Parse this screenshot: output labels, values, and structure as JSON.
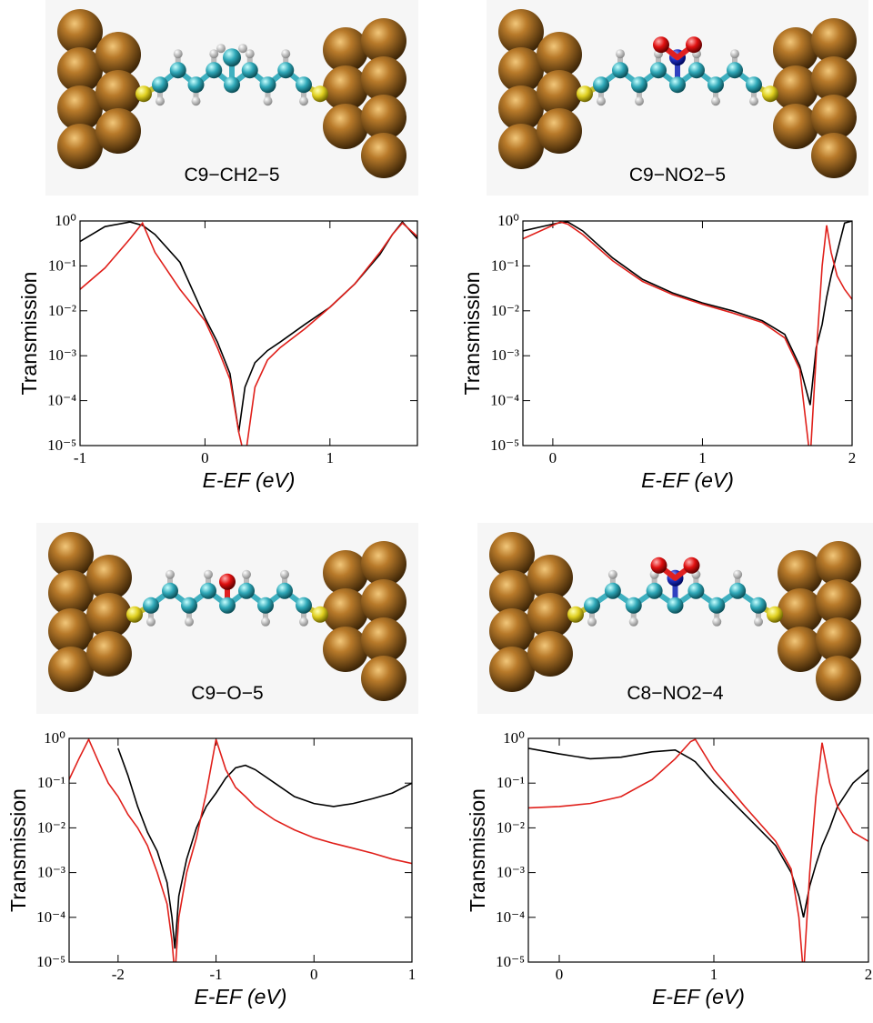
{
  "chart_data": [
    {
      "type": "line",
      "title": "C9−CH2−5",
      "xlabel": "E-EF  (eV)",
      "ylabel": "Transmission",
      "log_y": true,
      "xlim": [
        -1,
        1.7
      ],
      "xticks": [
        -1,
        0,
        1
      ],
      "ylim": [
        1e-05,
        1
      ],
      "yticks": [
        {
          "value": 1e-05,
          "label": "10⁻⁵"
        },
        {
          "value": 0.0001,
          "label": "10⁻⁴"
        },
        {
          "value": 0.001,
          "label": "10⁻³"
        },
        {
          "value": 0.01,
          "label": "10⁻²"
        },
        {
          "value": 0.1,
          "label": "10⁻¹"
        },
        {
          "value": 1,
          "label": "10⁰"
        }
      ],
      "x": [
        -1,
        -0.8,
        -0.6,
        -0.5,
        -0.4,
        -0.2,
        0,
        0.1,
        0.2,
        0.27,
        0.32,
        0.4,
        0.5,
        0.6,
        0.8,
        1.0,
        1.2,
        1.4,
        1.5,
        1.58,
        1.7
      ],
      "series": [
        {
          "color": "#000000",
          "values": [
            0.35,
            0.75,
            0.95,
            0.8,
            0.5,
            0.12,
            0.007,
            0.002,
            0.0004,
            2e-05,
            0.0002,
            0.0007,
            0.0013,
            0.002,
            0.005,
            0.012,
            0.04,
            0.18,
            0.5,
            0.95,
            0.4
          ]
        },
        {
          "color": "#e0201b",
          "values": [
            0.03,
            0.09,
            0.4,
            0.9,
            0.2,
            0.03,
            0.006,
            0.0015,
            0.0003,
            2e-05,
            5e-06,
            0.0002,
            0.0008,
            0.0015,
            0.004,
            0.012,
            0.04,
            0.2,
            0.5,
            0.9,
            0.45
          ]
        }
      ]
    },
    {
      "type": "line",
      "title": "C9−NO2−5",
      "xlabel": "E-EF  (eV)",
      "ylabel": "Transmission",
      "log_y": true,
      "xlim": [
        -0.2,
        2
      ],
      "xticks": [
        0,
        1,
        2
      ],
      "ylim": [
        1e-05,
        1
      ],
      "yticks": [
        {
          "value": 1e-05,
          "label": "10⁻⁵"
        },
        {
          "value": 0.0001,
          "label": "10⁻⁴"
        },
        {
          "value": 0.001,
          "label": "10⁻³"
        },
        {
          "value": 0.01,
          "label": "10⁻²"
        },
        {
          "value": 0.1,
          "label": "10⁻¹"
        },
        {
          "value": 1,
          "label": "10⁰"
        }
      ],
      "x": [
        -0.2,
        0,
        0.05,
        0.1,
        0.2,
        0.4,
        0.6,
        0.8,
        1.0,
        1.2,
        1.4,
        1.55,
        1.65,
        1.72,
        1.76,
        1.8,
        1.83,
        1.86,
        1.9,
        1.95,
        2.0
      ],
      "series": [
        {
          "color": "#000000",
          "values": [
            0.6,
            0.85,
            0.92,
            0.95,
            0.6,
            0.15,
            0.05,
            0.025,
            0.015,
            0.01,
            0.006,
            0.003,
            0.0006,
            8e-05,
            0.0015,
            0.005,
            0.02,
            0.06,
            0.2,
            0.9,
            1
          ]
        },
        {
          "color": "#e0201b",
          "values": [
            0.4,
            0.8,
            0.95,
            0.85,
            0.5,
            0.13,
            0.045,
            0.023,
            0.014,
            0.009,
            0.0055,
            0.0025,
            0.0005,
            5e-06,
            0.001,
            0.1,
            0.8,
            0.2,
            0.06,
            0.03,
            0.018
          ]
        }
      ]
    },
    {
      "type": "line",
      "title": "C9−O−5",
      "xlabel": "E-EF  (eV)",
      "ylabel": "Transmission",
      "log_y": true,
      "xlim": [
        -2.5,
        1
      ],
      "xticks": [
        -2,
        -1,
        0,
        1
      ],
      "ylim": [
        1e-05,
        1
      ],
      "yticks": [
        {
          "value": 1e-05,
          "label": "10⁻⁵"
        },
        {
          "value": 0.0001,
          "label": "10⁻⁴"
        },
        {
          "value": 0.001,
          "label": "10⁻³"
        },
        {
          "value": 0.01,
          "label": "10⁻²"
        },
        {
          "value": 0.1,
          "label": "10⁻¹"
        },
        {
          "value": 1,
          "label": "10⁰"
        }
      ],
      "x": [
        -2.5,
        -2.4,
        -2.3,
        -2.2,
        -2.1,
        -2.0,
        -1.9,
        -1.8,
        -1.7,
        -1.6,
        -1.5,
        -1.45,
        -1.42,
        -1.38,
        -1.3,
        -1.2,
        -1.1,
        -1.0,
        -0.9,
        -0.8,
        -0.7,
        -0.6,
        -0.4,
        -0.2,
        0,
        0.2,
        0.4,
        0.6,
        0.8,
        1.0
      ],
      "series": [
        {
          "color": "#000000",
          "values": [
            null,
            null,
            null,
            null,
            null,
            0.6,
            0.15,
            0.03,
            0.008,
            0.003,
            0.0006,
            0.0001,
            2e-05,
            0.0003,
            0.002,
            0.01,
            0.03,
            0.06,
            0.13,
            0.22,
            0.25,
            0.2,
            0.1,
            0.05,
            0.035,
            0.03,
            0.035,
            0.045,
            0.06,
            0.1
          ]
        },
        {
          "color": "#e0201b",
          "values": [
            0.12,
            0.35,
            0.95,
            0.3,
            0.1,
            0.05,
            0.02,
            0.01,
            0.004,
            0.001,
            0.0002,
            3e-05,
            5e-06,
            0.0001,
            0.001,
            0.006,
            0.06,
            0.95,
            0.2,
            0.08,
            0.05,
            0.03,
            0.015,
            0.009,
            0.006,
            0.0045,
            0.0035,
            0.0027,
            0.002,
            0.0016
          ]
        }
      ]
    },
    {
      "type": "line",
      "title": "C8−NO2−4",
      "xlabel": "E-EF  (eV)",
      "ylabel": "Transmission",
      "log_y": true,
      "xlim": [
        -0.2,
        2
      ],
      "xticks": [
        0,
        1,
        2
      ],
      "ylim": [
        1e-05,
        1
      ],
      "yticks": [
        {
          "value": 1e-05,
          "label": "10⁻⁵"
        },
        {
          "value": 0.0001,
          "label": "10⁻⁴"
        },
        {
          "value": 0.001,
          "label": "10⁻³"
        },
        {
          "value": 0.01,
          "label": "10⁻²"
        },
        {
          "value": 0.1,
          "label": "10⁻¹"
        },
        {
          "value": 1,
          "label": "10⁰"
        }
      ],
      "x": [
        -0.2,
        0,
        0.2,
        0.4,
        0.6,
        0.75,
        0.85,
        0.88,
        1.0,
        1.2,
        1.4,
        1.5,
        1.55,
        1.58,
        1.62,
        1.66,
        1.7,
        1.75,
        1.8,
        1.9,
        2.0
      ],
      "series": [
        {
          "color": "#000000",
          "values": [
            0.6,
            0.45,
            0.35,
            0.38,
            0.5,
            0.55,
            0.35,
            0.3,
            0.1,
            0.02,
            0.004,
            0.001,
            0.0003,
            0.0001,
            0.0005,
            0.0015,
            0.004,
            0.01,
            0.03,
            0.1,
            0.2
          ]
        },
        {
          "color": "#e0201b",
          "values": [
            0.028,
            0.03,
            0.035,
            0.05,
            0.12,
            0.35,
            0.85,
            0.95,
            0.2,
            0.03,
            0.005,
            0.0012,
            0.0001,
            5e-06,
            0.001,
            0.05,
            0.8,
            0.1,
            0.03,
            0.008,
            0.005
          ]
        }
      ]
    }
  ]
}
